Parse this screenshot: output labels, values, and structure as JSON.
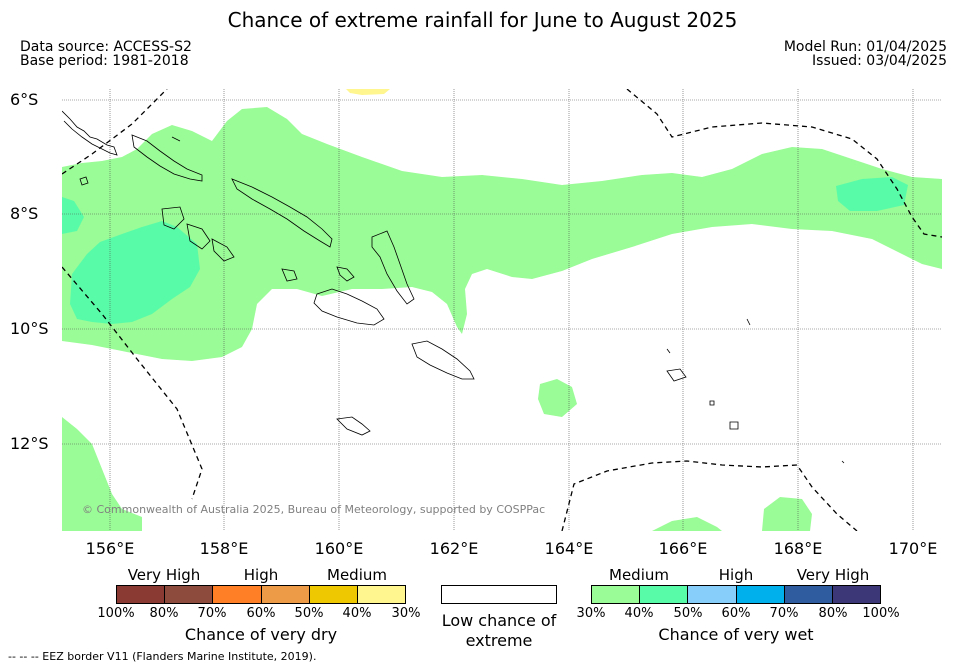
{
  "title": "Chance of extreme rainfall for June to August 2025",
  "header": {
    "data_source": "Data source: ACCESS-S2",
    "base_period": "Base period: 1981-2018",
    "model_run": "Model Run: 01/04/2025",
    "issued": "Issued: 03/04/2025"
  },
  "axes": {
    "lat_labels": [
      "6°S",
      "8°S",
      "10°S",
      "12°S"
    ],
    "lon_labels": [
      "156°E",
      "158°E",
      "160°E",
      "162°E",
      "164°E",
      "166°E",
      "168°E",
      "170°E"
    ]
  },
  "copyright": "© Commonwealth of Australia 2025, Bureau of Meteorology, supported by COSPPac",
  "legend": {
    "dry": {
      "title": "Chance of very dry",
      "categories": [
        "Very High",
        "High",
        "Medium"
      ],
      "ticks": [
        "100%",
        "80%",
        "70%",
        "60%",
        "50%",
        "40%",
        "30%"
      ],
      "colors": [
        "#8b3a33",
        "#8c4b3c",
        "#ff7f27",
        "#ed9b47",
        "#eec800",
        "#fff68f"
      ]
    },
    "low": {
      "title": "Low chance of extreme",
      "color": "#ffffff"
    },
    "wet": {
      "title": "Chance of very wet",
      "categories": [
        "Medium",
        "High",
        "Very High"
      ],
      "ticks": [
        "30%",
        "40%",
        "50%",
        "60%",
        "70%",
        "80%",
        "100%"
      ],
      "colors": [
        "#9afc96",
        "#58fca8",
        "#87cefa",
        "#00b0ed",
        "#2e5c9e",
        "#3c3877"
      ]
    }
  },
  "footnote": "--  --  -- EEZ border V11 (Flanders Marine Institute, 2019).",
  "colors": {
    "medium_wet": "#9afc96",
    "high_wet": "#58fca8",
    "medium_dry": "#fff68f"
  }
}
